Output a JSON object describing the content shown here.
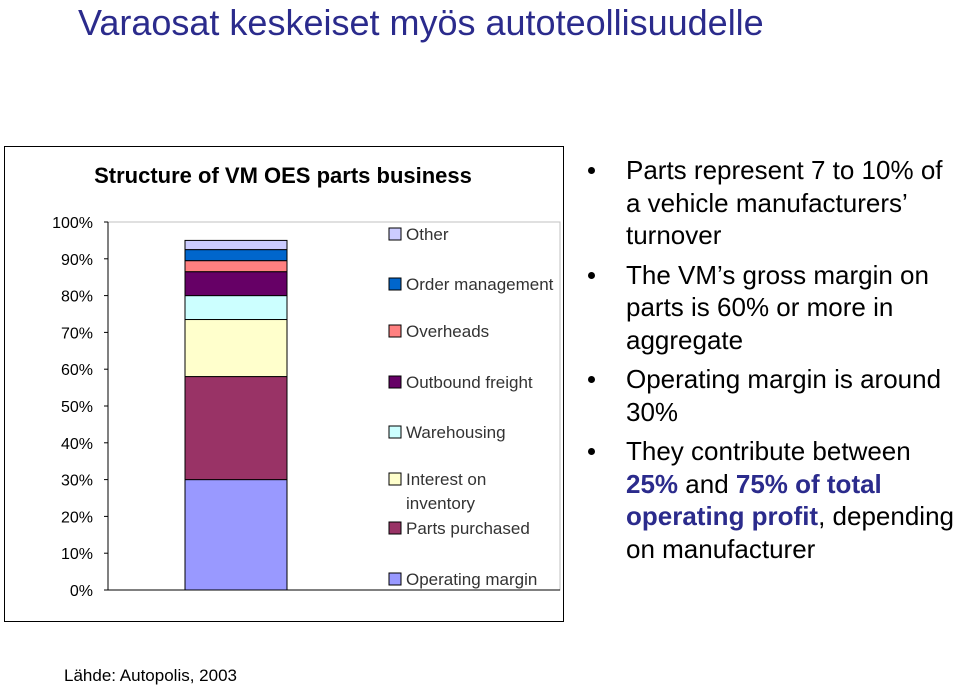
{
  "slide": {
    "title": "Varaosat keskeiset myös autoteollisuudelle",
    "source": "Lähde: Autopolis, 2003"
  },
  "chart_data": {
    "type": "bar",
    "stacked": true,
    "title": "Structure of VM OES parts business",
    "ylim": [
      0,
      100
    ],
    "yticks": [
      "0%",
      "10%",
      "20%",
      "30%",
      "40%",
      "50%",
      "60%",
      "70%",
      "80%",
      "90%",
      "100%"
    ],
    "categories": [
      ""
    ],
    "legend_position": "right",
    "series": [
      {
        "name": "Operating margin",
        "values": [
          30
        ],
        "color": "#9999ff"
      },
      {
        "name": "Parts purchased",
        "values": [
          28
        ],
        "color": "#993366"
      },
      {
        "name": "Interest on inventory",
        "values": [
          15.5
        ],
        "color": "#ffffcc"
      },
      {
        "name": "Warehousing",
        "values": [
          6.5
        ],
        "color": "#ccffff"
      },
      {
        "name": "Outbound freight",
        "values": [
          6.5
        ],
        "color": "#660066"
      },
      {
        "name": "Overheads",
        "values": [
          3
        ],
        "color": "#ff8080"
      },
      {
        "name": "Order management",
        "values": [
          3
        ],
        "color": "#0066cc"
      },
      {
        "name": "Other",
        "values": [
          2.5
        ],
        "color": "#ccccff"
      }
    ]
  },
  "bullets": [
    {
      "text": "Parts represent 7 to 10% of a vehicle manufacturers’ turnover"
    },
    {
      "text": "The VM’s gross margin on parts is 60% or more in aggregate"
    },
    {
      "text": "Operating margin is around 30%"
    },
    {
      "parts": [
        {
          "t": "They contribute between ",
          "hl": false
        },
        {
          "t": "25%",
          "hl": true
        },
        {
          "t": " and ",
          "hl": false
        },
        {
          "t": "75% of total operating profit",
          "hl": true
        },
        {
          "t": ", depending on manufacturer",
          "hl": false
        }
      ]
    }
  ]
}
